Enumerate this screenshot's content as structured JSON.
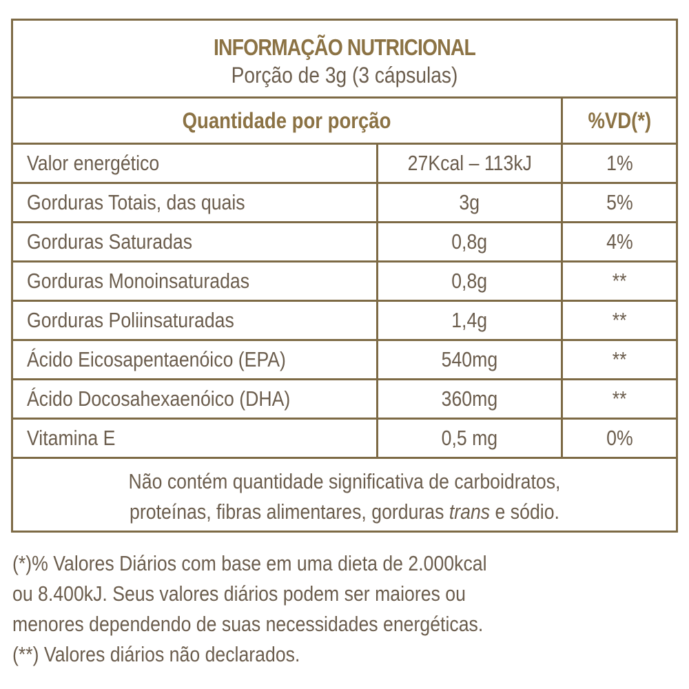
{
  "label": {
    "title": "INFORMAÇÃO NUTRICIONAL",
    "serving": "Porção de 3g (3 cápsulas)",
    "header": {
      "quantity": "Quantidade por porção",
      "daily_value": "%VD(*)"
    },
    "rows": [
      {
        "name": "Valor energético",
        "amount": "27Kcal – 113kJ",
        "dv": "1%"
      },
      {
        "name": "Gorduras Totais, das quais",
        "amount": "3g",
        "dv": "5%"
      },
      {
        "name": "Gorduras Saturadas",
        "amount": "0,8g",
        "dv": "4%"
      },
      {
        "name": "Gorduras Monoinsaturadas",
        "amount": "0,8g",
        "dv": "**"
      },
      {
        "name": "Gorduras Poliinsaturadas",
        "amount": "1,4g",
        "dv": "**"
      },
      {
        "name": "Ácido Eicosapentaenóico (EPA)",
        "amount": "540mg",
        "dv": "**"
      },
      {
        "name": "Ácido Docosahexaenóico (DHA)",
        "amount": "360mg",
        "dv": "**"
      },
      {
        "name": "Vitamina E",
        "amount": "0,5 mg",
        "dv": "0%"
      }
    ],
    "note": {
      "line1": "Não contém quantidade significativa de carboidratos,",
      "line2_before": "proteínas, fibras alimentares, gorduras ",
      "line2_italic": "trans",
      "line2_after": " e sódio."
    }
  },
  "footnotes": [
    "(*)% Valores Diários com base em uma dieta de 2.000kcal",
    "ou 8.400kJ. Seus valores diários podem ser maiores ou",
    "menores dependendo de suas necessidades energéticas.",
    "(**) Valores diários não declarados."
  ],
  "colors": {
    "border": "#7d6a45",
    "heading": "#8b7244",
    "text": "#6b5d4d"
  }
}
